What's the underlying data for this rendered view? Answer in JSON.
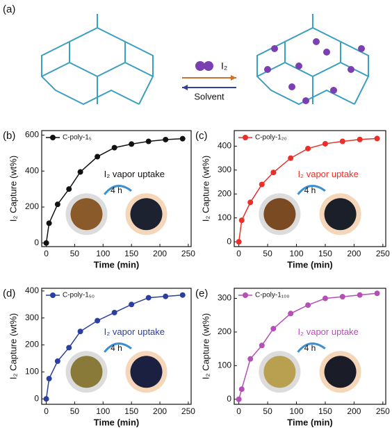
{
  "panel_a": {
    "label": "(a)",
    "forward": "I₂",
    "backward": "Solvent"
  },
  "chart_data": [
    {
      "type": "line",
      "panel": "(b)",
      "x_label": "Time (min)",
      "y_label": "I₂ Capture (wt%)",
      "annotation": "I₂ vapor uptake",
      "duration": "4 h",
      "x": [
        0,
        5,
        20,
        40,
        60,
        90,
        120,
        150,
        180,
        210,
        240
      ],
      "series": [
        {
          "name": "C-poly-1₅",
          "color": "#111111",
          "values": [
            0,
            110,
            215,
            300,
            395,
            480,
            530,
            550,
            565,
            575,
            580
          ]
        }
      ],
      "xlim": [
        -8,
        255
      ],
      "xticks": [
        0,
        50,
        100,
        150,
        200,
        250
      ],
      "ylim": [
        -20,
        625
      ],
      "yticks": [
        0,
        200,
        400,
        600
      ]
    },
    {
      "type": "line",
      "panel": "(c)",
      "x_label": "Time (min)",
      "y_label": "I₂ Capture (wt%)",
      "annotation": "I₂ vapor uptake",
      "duration": "4 h",
      "x": [
        0,
        5,
        20,
        40,
        60,
        90,
        120,
        150,
        180,
        210,
        240
      ],
      "series": [
        {
          "name": "C-poly-1₂₀",
          "color": "#e8302a",
          "values": [
            0,
            90,
            165,
            240,
            290,
            350,
            390,
            410,
            420,
            428,
            432
          ]
        }
      ],
      "xlim": [
        -8,
        255
      ],
      "xticks": [
        0,
        50,
        100,
        150,
        200,
        250
      ],
      "ylim": [
        -20,
        465
      ],
      "yticks": [
        0,
        100,
        200,
        300,
        400
      ]
    },
    {
      "type": "line",
      "panel": "(d)",
      "x_label": "Time (min)",
      "y_label": "I₂ Capture (wt%)",
      "annotation": "I₂ vapor uptake",
      "duration": "4 h",
      "x": [
        0,
        5,
        20,
        40,
        60,
        90,
        120,
        150,
        180,
        210,
        240
      ],
      "series": [
        {
          "name": "C-poly-1₅₀",
          "color": "#2b3fa0",
          "values": [
            0,
            75,
            140,
            190,
            250,
            290,
            320,
            350,
            375,
            380,
            385
          ]
        }
      ],
      "xlim": [
        -8,
        255
      ],
      "xticks": [
        0,
        50,
        100,
        150,
        200,
        250
      ],
      "ylim": [
        -20,
        410
      ],
      "yticks": [
        0,
        100,
        200,
        300,
        400
      ]
    },
    {
      "type": "line",
      "panel": "(e)",
      "x_label": "Time (min)",
      "y_label": "I₂ Capture (wt%)",
      "annotation": "I₂ vapor uptake",
      "duration": "4 h",
      "x": [
        0,
        5,
        20,
        40,
        60,
        90,
        120,
        150,
        180,
        210,
        240
      ],
      "series": [
        {
          "name": "C-poly-1₁₀₀",
          "color": "#b44fb5",
          "values": [
            0,
            30,
            120,
            160,
            210,
            255,
            280,
            300,
            305,
            310,
            315
          ]
        }
      ],
      "xlim": [
        -8,
        255
      ],
      "xticks": [
        0,
        50,
        100,
        150,
        200,
        250
      ],
      "ylim": [
        -15,
        330
      ],
      "yticks": [
        0,
        100,
        200,
        300
      ]
    }
  ]
}
